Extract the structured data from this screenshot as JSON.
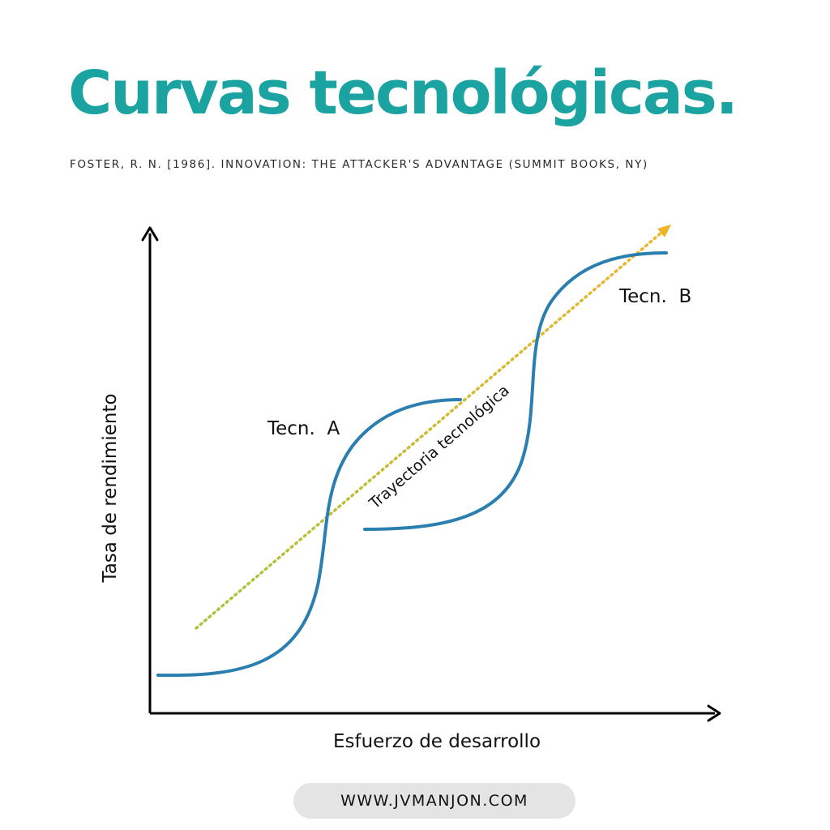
{
  "header": {
    "title": "Curvas tecnológicas.",
    "subtitle": "FOSTER, R. N. [1986]. INNOVATION: THE ATTACKER'S ADVANTAGE (SUMMIT BOOKS, NY)"
  },
  "diagram": {
    "y_axis_label": "Tasa de rendimiento",
    "x_axis_label": "Esfuerzo de desarrollo",
    "curve_a_label": "Tecn.  A",
    "curve_b_label": "Tecn.  B",
    "trajectory_label": "Trayectoria tecnológica"
  },
  "footer": {
    "url": "WWW.JVMANJON.COM"
  },
  "colors": {
    "title": "#1aa3a0",
    "curve": "#2a7fb0",
    "trajectory_start": "#a8c43c",
    "trajectory_end": "#f0b429",
    "axis": "#000000"
  }
}
